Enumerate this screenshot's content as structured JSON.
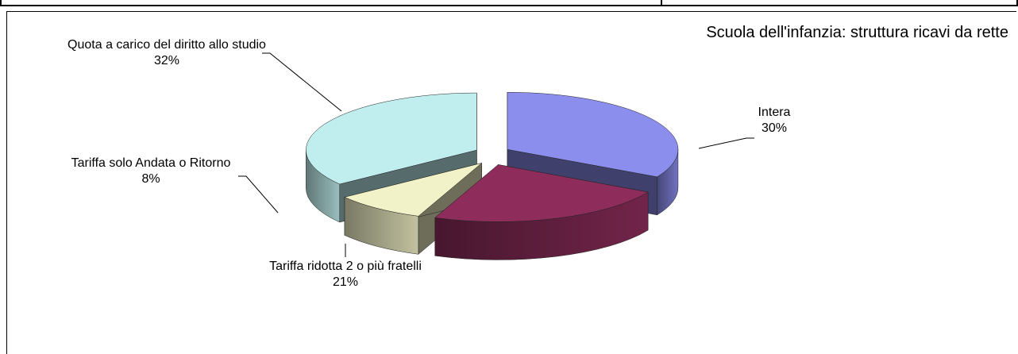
{
  "chart_data": {
    "type": "pie",
    "title": "Scuola dell'infanzia: struttura ricavi da rette",
    "categories": [
      "Intera",
      "Tariffa ridotta 2 o più fratelli",
      "Tariffa solo Andata o Ritorno",
      "Quota a carico del diritto allo studio"
    ],
    "values": [
      30,
      21,
      8,
      32
    ],
    "value_labels": [
      "30%",
      "21%",
      "8%",
      "32%"
    ],
    "colors": [
      "#8c8eee",
      "#8e2d5c",
      "#f2f2c8",
      "#c0eeee"
    ]
  }
}
